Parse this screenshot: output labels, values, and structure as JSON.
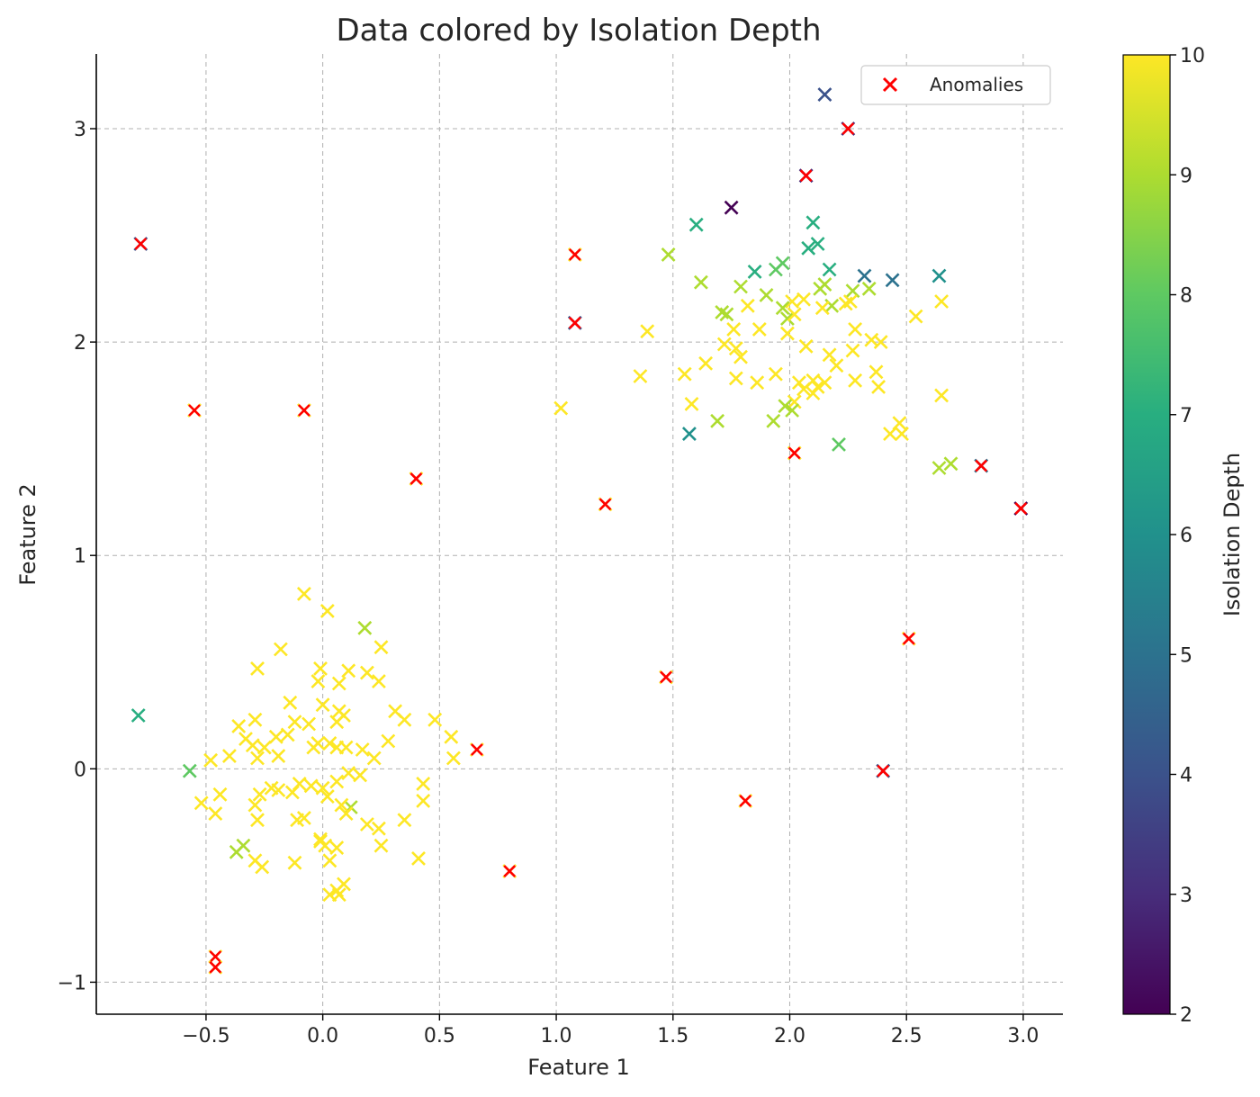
{
  "chart_data": {
    "type": "scatter",
    "title": "Data colored by Isolation Depth",
    "xlabel": "Feature 1",
    "ylabel": "Feature 2",
    "xlim": [
      -0.97,
      3.17
    ],
    "ylim": [
      -1.15,
      3.35
    ],
    "xticks": [
      -0.5,
      0.0,
      0.5,
      1.0,
      1.5,
      2.0,
      2.5,
      3.0
    ],
    "xtick_labels": [
      "−0.5",
      "0.0",
      "0.5",
      "1.0",
      "1.5",
      "2.0",
      "2.5",
      "3.0"
    ],
    "yticks": [
      -1,
      0,
      1,
      2,
      3
    ],
    "ytick_labels": [
      "−1",
      "0",
      "1",
      "2",
      "3"
    ],
    "grid": true,
    "marker": "x",
    "colormap": "viridis",
    "colorbar": {
      "label": "Isolation Depth",
      "range": [
        2,
        10
      ],
      "ticks": [
        2,
        3,
        4,
        5,
        6,
        7,
        8,
        9,
        10
      ],
      "tick_labels": [
        "2",
        "3",
        "4",
        "5",
        "6",
        "7",
        "8",
        "9",
        "10"
      ]
    },
    "legend": {
      "position": "top-right",
      "entries": [
        {
          "label": "Anomalies",
          "color": "#ff0000"
        }
      ]
    },
    "anomaly_color": "#ff0000",
    "series": [
      {
        "points": [
          [
            -0.08,
            0.82,
            10
          ],
          [
            0.02,
            0.74,
            10
          ],
          [
            0.18,
            0.66,
            9
          ],
          [
            -0.18,
            0.56,
            10
          ],
          [
            0.25,
            0.57,
            10
          ],
          [
            -0.28,
            0.47,
            10
          ],
          [
            -0.01,
            0.47,
            10
          ],
          [
            0.11,
            0.46,
            10
          ],
          [
            0.19,
            0.45,
            10
          ],
          [
            0.24,
            0.41,
            10
          ],
          [
            -0.02,
            0.41,
            10
          ],
          [
            0.07,
            0.4,
            10
          ],
          [
            -0.14,
            0.31,
            10
          ],
          [
            0.0,
            0.3,
            10
          ],
          [
            0.07,
            0.27,
            10
          ],
          [
            0.31,
            0.27,
            10
          ],
          [
            -0.36,
            0.2,
            10
          ],
          [
            -0.29,
            0.23,
            10
          ],
          [
            0.09,
            0.25,
            10
          ],
          [
            -0.12,
            0.22,
            10
          ],
          [
            0.35,
            0.23,
            10
          ],
          [
            0.48,
            0.23,
            10
          ],
          [
            -0.06,
            0.21,
            10
          ],
          [
            0.06,
            0.22,
            10
          ],
          [
            -0.33,
            0.14,
            10
          ],
          [
            -0.2,
            0.15,
            10
          ],
          [
            -0.15,
            0.16,
            10
          ],
          [
            0.55,
            0.15,
            10
          ],
          [
            -0.3,
            0.11,
            10
          ],
          [
            -0.25,
            0.1,
            10
          ],
          [
            -0.04,
            0.1,
            10
          ],
          [
            -0.02,
            0.12,
            10
          ],
          [
            0.03,
            0.12,
            10
          ],
          [
            0.06,
            0.1,
            10
          ],
          [
            0.1,
            0.1,
            10
          ],
          [
            0.17,
            0.09,
            10
          ],
          [
            0.28,
            0.13,
            10
          ],
          [
            -0.48,
            0.04,
            10
          ],
          [
            -0.4,
            0.06,
            10
          ],
          [
            -0.28,
            0.05,
            10
          ],
          [
            -0.19,
            0.06,
            10
          ],
          [
            0.22,
            0.05,
            10
          ],
          [
            0.56,
            0.05,
            10
          ],
          [
            -0.57,
            -0.01,
            8
          ],
          [
            0.11,
            -0.02,
            10
          ],
          [
            0.16,
            -0.03,
            10
          ],
          [
            -0.22,
            -0.09,
            10
          ],
          [
            -0.1,
            -0.07,
            10
          ],
          [
            -0.05,
            -0.08,
            10
          ],
          [
            0.0,
            -0.09,
            10
          ],
          [
            0.06,
            -0.06,
            10
          ],
          [
            0.43,
            -0.07,
            10
          ],
          [
            -0.44,
            -0.12,
            10
          ],
          [
            -0.27,
            -0.12,
            10
          ],
          [
            -0.19,
            -0.1,
            10
          ],
          [
            -0.13,
            -0.11,
            10
          ],
          [
            0.02,
            -0.13,
            10
          ],
          [
            0.12,
            -0.18,
            9
          ],
          [
            -0.52,
            -0.16,
            10
          ],
          [
            -0.29,
            -0.17,
            10
          ],
          [
            0.08,
            -0.17,
            10
          ],
          [
            0.43,
            -0.15,
            10
          ],
          [
            -0.46,
            -0.21,
            10
          ],
          [
            -0.28,
            -0.24,
            10
          ],
          [
            -0.11,
            -0.24,
            10
          ],
          [
            -0.08,
            -0.23,
            10
          ],
          [
            0.19,
            -0.26,
            10
          ],
          [
            0.24,
            -0.28,
            10
          ],
          [
            0.35,
            -0.24,
            10
          ],
          [
            0.1,
            -0.21,
            10
          ],
          [
            -0.01,
            -0.33,
            10
          ],
          [
            0.01,
            -0.36,
            10
          ],
          [
            -0.01,
            -0.34,
            10
          ],
          [
            0.06,
            -0.37,
            10
          ],
          [
            0.25,
            -0.36,
            10
          ],
          [
            -0.37,
            -0.39,
            9
          ],
          [
            -0.34,
            -0.36,
            9
          ],
          [
            -0.29,
            -0.43,
            10
          ],
          [
            -0.26,
            -0.46,
            10
          ],
          [
            -0.12,
            -0.44,
            10
          ],
          [
            0.03,
            -0.43,
            10
          ],
          [
            0.41,
            -0.42,
            10
          ],
          [
            0.09,
            -0.54,
            10
          ],
          [
            0.03,
            -0.59,
            10
          ],
          [
            0.06,
            -0.57,
            10
          ],
          [
            0.07,
            -0.59,
            10
          ],
          [
            -0.79,
            0.25,
            7
          ],
          [
            1.75,
            2.63,
            2
          ],
          [
            2.15,
            3.16,
            4
          ],
          [
            1.6,
            2.55,
            7
          ],
          [
            2.1,
            2.56,
            7
          ],
          [
            2.12,
            2.46,
            7
          ],
          [
            2.08,
            2.44,
            7
          ],
          [
            2.17,
            2.34,
            7
          ],
          [
            1.85,
            2.33,
            7
          ],
          [
            1.94,
            2.34,
            8
          ],
          [
            1.97,
            2.37,
            8
          ],
          [
            2.32,
            2.31,
            5
          ],
          [
            2.44,
            2.29,
            5
          ],
          [
            2.64,
            2.31,
            6
          ],
          [
            1.48,
            2.41,
            9
          ],
          [
            1.62,
            2.28,
            9
          ],
          [
            1.79,
            2.26,
            9
          ],
          [
            2.13,
            2.25,
            9
          ],
          [
            2.15,
            2.27,
            9
          ],
          [
            2.27,
            2.24,
            9
          ],
          [
            2.34,
            2.25,
            9
          ],
          [
            1.9,
            2.22,
            9
          ],
          [
            2.01,
            2.19,
            10
          ],
          [
            2.06,
            2.2,
            10
          ],
          [
            2.18,
            2.17,
            9
          ],
          [
            2.26,
            2.19,
            10
          ],
          [
            2.65,
            2.19,
            10
          ],
          [
            1.71,
            2.14,
            9
          ],
          [
            1.73,
            2.13,
            9
          ],
          [
            1.99,
            2.11,
            9
          ],
          [
            1.97,
            2.16,
            9
          ],
          [
            2.02,
            2.13,
            10
          ],
          [
            2.14,
            2.16,
            10
          ],
          [
            2.24,
            2.18,
            10
          ],
          [
            2.54,
            2.12,
            10
          ],
          [
            1.82,
            2.17,
            10
          ],
          [
            1.87,
            2.06,
            10
          ],
          [
            1.39,
            2.05,
            10
          ],
          [
            1.76,
            2.06,
            10
          ],
          [
            1.99,
            2.04,
            10
          ],
          [
            2.28,
            2.06,
            10
          ],
          [
            2.35,
            2.01,
            10
          ],
          [
            2.39,
            2.0,
            10
          ],
          [
            1.72,
            1.99,
            10
          ],
          [
            1.77,
            1.97,
            10
          ],
          [
            1.64,
            1.9,
            10
          ],
          [
            1.79,
            1.93,
            10
          ],
          [
            2.07,
            1.98,
            10
          ],
          [
            2.17,
            1.94,
            10
          ],
          [
            2.27,
            1.96,
            10
          ],
          [
            2.2,
            1.89,
            10
          ],
          [
            1.36,
            1.84,
            10
          ],
          [
            1.55,
            1.85,
            10
          ],
          [
            1.77,
            1.83,
            10
          ],
          [
            1.86,
            1.81,
            10
          ],
          [
            1.94,
            1.85,
            10
          ],
          [
            2.04,
            1.81,
            10
          ],
          [
            2.1,
            1.82,
            10
          ],
          [
            2.12,
            1.79,
            10
          ],
          [
            2.15,
            1.81,
            10
          ],
          [
            2.28,
            1.82,
            10
          ],
          [
            2.37,
            1.86,
            10
          ],
          [
            2.38,
            1.79,
            10
          ],
          [
            1.58,
            1.71,
            10
          ],
          [
            2.02,
            1.72,
            10
          ],
          [
            2.06,
            1.78,
            10
          ],
          [
            2.1,
            1.76,
            10
          ],
          [
            2.65,
            1.75,
            10
          ],
          [
            1.98,
            1.7,
            9
          ],
          [
            2.01,
            1.68,
            9
          ],
          [
            1.02,
            1.69,
            10
          ],
          [
            1.69,
            1.63,
            9
          ],
          [
            1.93,
            1.63,
            9
          ],
          [
            2.47,
            1.62,
            10
          ],
          [
            2.43,
            1.57,
            10
          ],
          [
            2.48,
            1.57,
            10
          ],
          [
            1.57,
            1.57,
            6
          ],
          [
            2.21,
            1.52,
            8
          ],
          [
            2.64,
            1.41,
            9
          ],
          [
            2.69,
            1.43,
            9
          ]
        ]
      },
      {
        "name": "Anomalies",
        "points": [
          [
            -0.78,
            2.46,
            4
          ],
          [
            -0.55,
            1.68,
            10
          ],
          [
            -0.08,
            1.68,
            10
          ],
          [
            0.4,
            1.36,
            10
          ],
          [
            0.66,
            0.09,
            10
          ],
          [
            0.8,
            -0.48,
            10
          ],
          [
            -0.46,
            -0.88,
            10
          ],
          [
            -0.46,
            -0.93,
            10
          ],
          [
            1.08,
            2.41,
            10
          ],
          [
            1.08,
            2.09,
            4
          ],
          [
            1.21,
            1.24,
            10
          ],
          [
            1.47,
            0.43,
            10
          ],
          [
            1.81,
            -0.15,
            10
          ],
          [
            2.07,
            2.78,
            3
          ],
          [
            2.25,
            3.0,
            3
          ],
          [
            2.02,
            1.48,
            10
          ],
          [
            2.4,
            -0.01,
            4
          ],
          [
            2.51,
            0.61,
            10
          ],
          [
            2.82,
            1.42,
            5
          ],
          [
            2.99,
            1.22,
            2
          ]
        ]
      }
    ]
  }
}
